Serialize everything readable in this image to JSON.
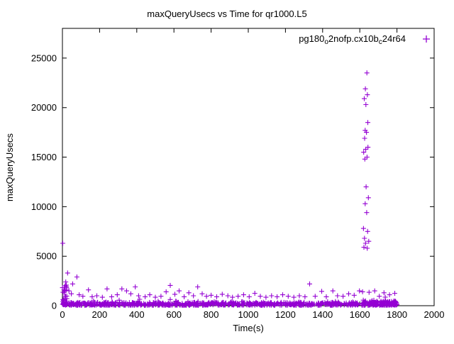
{
  "page": {
    "background": "#ffffff"
  },
  "chart_data": {
    "type": "scatter",
    "title": "maxQueryUsecs vs Time for qr1000.L5",
    "xlabel": "Time(s)",
    "ylabel": "maxQueryUsecs",
    "xlim": [
      0,
      2000
    ],
    "ylim": [
      0,
      28000
    ],
    "xticks": [
      0,
      200,
      400,
      600,
      800,
      1000,
      1200,
      1400,
      1600,
      1800,
      2000
    ],
    "yticks": [
      0,
      5000,
      10000,
      15000,
      20000,
      25000
    ],
    "grid": false,
    "legend": {
      "position": "top-right-inside",
      "series_name": "pg180_o2nofp.cx10b_c24r64",
      "parts": [
        {
          "text": "pg180"
        },
        {
          "sub": "o"
        },
        {
          "text": "2nofp.cx10b"
        },
        {
          "sub": "c"
        },
        {
          "text": "24r64"
        }
      ]
    },
    "marker": {
      "shape": "plus",
      "color": "#9400D3",
      "size": 7
    },
    "spike_cluster": [
      [
        1638,
        23500
      ],
      [
        1630,
        21900
      ],
      [
        1641,
        21300
      ],
      [
        1624,
        20900
      ],
      [
        1633,
        20300
      ],
      [
        1643,
        18500
      ],
      [
        1629,
        17700
      ],
      [
        1636,
        17500
      ],
      [
        1626,
        16900
      ],
      [
        1644,
        16000
      ],
      [
        1632,
        15800
      ],
      [
        1621,
        15500
      ],
      [
        1639,
        15000
      ],
      [
        1627,
        14800
      ],
      [
        1634,
        12000
      ],
      [
        1646,
        10900
      ],
      [
        1629,
        10300
      ],
      [
        1637,
        9400
      ],
      [
        1620,
        7800
      ],
      [
        1642,
        7500
      ],
      [
        1625,
        6800
      ],
      [
        1648,
        6500
      ],
      [
        1631,
        6300
      ],
      [
        1622,
        5900
      ],
      [
        1640,
        5800
      ]
    ],
    "isolated_outliers": [
      [
        2,
        6300
      ],
      [
        28,
        3300
      ],
      [
        78,
        2900
      ],
      [
        18,
        2400
      ],
      [
        55,
        2200
      ]
    ],
    "mid_points": [
      [
        8,
        1600
      ],
      [
        14,
        2000
      ],
      [
        22,
        1800
      ],
      [
        35,
        1500
      ],
      [
        48,
        1200
      ],
      [
        90,
        1100
      ],
      [
        110,
        950
      ],
      [
        140,
        1600
      ],
      [
        160,
        900
      ],
      [
        185,
        1000
      ],
      [
        215,
        850
      ],
      [
        240,
        1700
      ],
      [
        265,
        900
      ],
      [
        295,
        1100
      ],
      [
        320,
        1700
      ],
      [
        345,
        1500
      ],
      [
        368,
        1200
      ],
      [
        392,
        1900
      ],
      [
        410,
        1000
      ],
      [
        445,
        900
      ],
      [
        470,
        1100
      ],
      [
        500,
        850
      ],
      [
        530,
        950
      ],
      [
        558,
        1400
      ],
      [
        580,
        2050
      ],
      [
        605,
        1150
      ],
      [
        628,
        1500
      ],
      [
        655,
        900
      ],
      [
        680,
        1300
      ],
      [
        705,
        1000
      ],
      [
        728,
        1900
      ],
      [
        752,
        1200
      ],
      [
        775,
        950
      ],
      [
        800,
        1050
      ],
      [
        830,
        900
      ],
      [
        860,
        1150
      ],
      [
        890,
        1000
      ],
      [
        915,
        850
      ],
      [
        945,
        950
      ],
      [
        975,
        1100
      ],
      [
        1005,
        900
      ],
      [
        1035,
        1250
      ],
      [
        1065,
        950
      ],
      [
        1095,
        850
      ],
      [
        1125,
        1000
      ],
      [
        1155,
        900
      ],
      [
        1185,
        1100
      ],
      [
        1215,
        950
      ],
      [
        1245,
        850
      ],
      [
        1275,
        1000
      ],
      [
        1305,
        900
      ],
      [
        1330,
        2200
      ],
      [
        1360,
        950
      ],
      [
        1395,
        1450
      ],
      [
        1420,
        900
      ],
      [
        1455,
        1500
      ],
      [
        1480,
        1000
      ],
      [
        1510,
        950
      ],
      [
        1540,
        1200
      ],
      [
        1570,
        1050
      ],
      [
        1598,
        1500
      ],
      [
        1615,
        1400
      ],
      [
        1650,
        1350
      ],
      [
        1680,
        1500
      ],
      [
        1705,
        950
      ],
      [
        1730,
        1300
      ],
      [
        1760,
        1100
      ],
      [
        1788,
        1250
      ]
    ],
    "baseline": {
      "description": "dense noisy band of samples hugging y≈30–900 across the full time range",
      "count": 750,
      "x_range": [
        0,
        1800
      ],
      "seed": 20240501,
      "zero_cluster": {
        "count": 30,
        "x_range": [
          0,
          25
        ],
        "y_range": [
          100,
          2100
        ]
      },
      "right_band": {
        "count": 70,
        "x_range": [
          1600,
          1800
        ]
      }
    }
  }
}
